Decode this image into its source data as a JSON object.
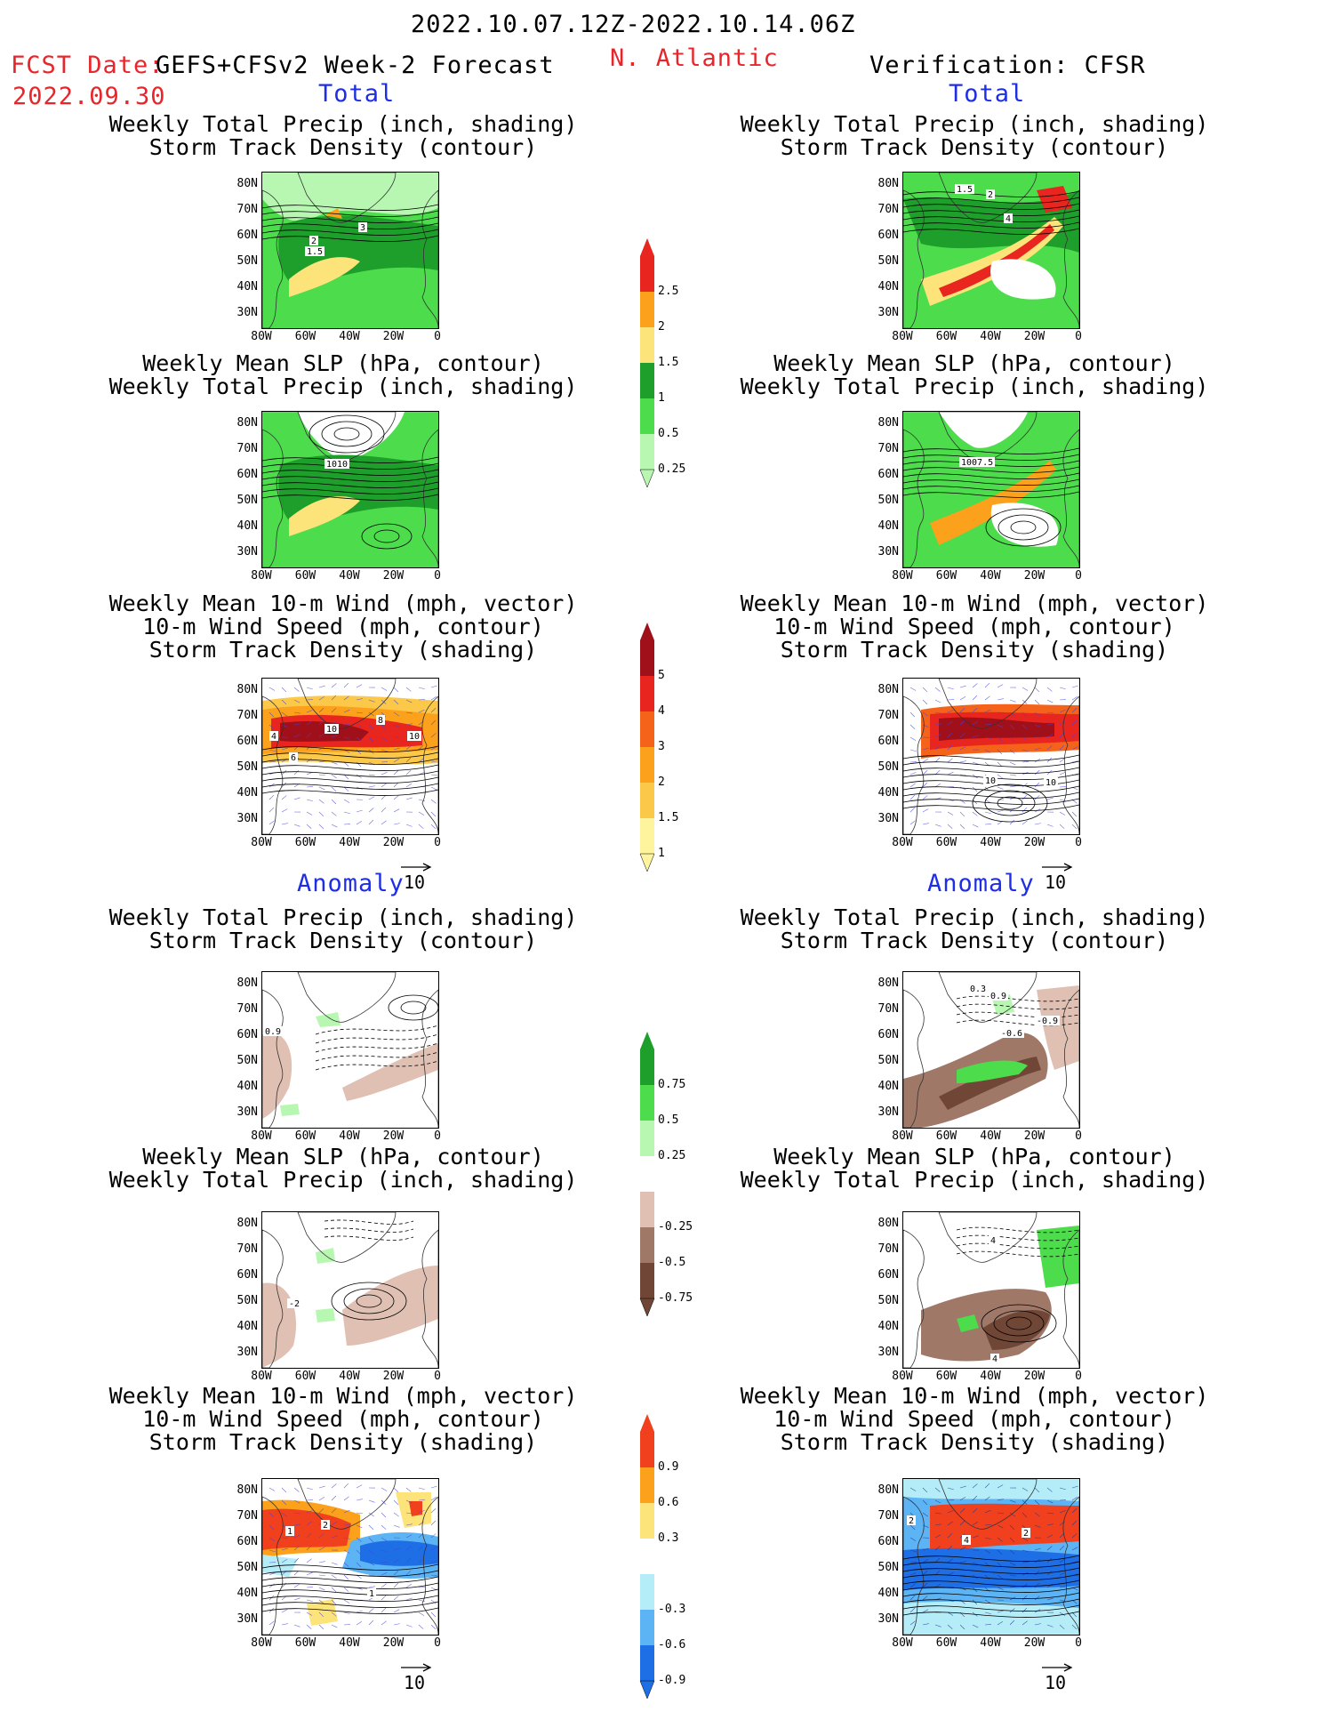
{
  "header": {
    "period": "2022.10.07.12Z-2022.10.14.06Z",
    "fcst_label": "FCST Date:",
    "fcst_model": "GEFS+CFSv2 Week-2 Forecast",
    "fcst_date": "2022.09.30",
    "region": "N. Atlantic",
    "verification": "Verification: CFSR"
  },
  "sections": {
    "total": "Total",
    "anomaly": "Anomaly"
  },
  "titles": {
    "precip_track": [
      "Weekly Total Precip (inch, shading)",
      "Storm Track Density (contour)"
    ],
    "slp_precip": [
      "Weekly Mean SLP (hPa, contour)",
      "Weekly Total Precip (inch, shading)"
    ],
    "wind_track": [
      "Weekly Mean 10-m Wind (mph, vector)",
      "10-m Wind Speed (mph, contour)",
      "Storm Track Density (shading)"
    ]
  },
  "axes": {
    "lat_ticks": [
      "80N",
      "70N",
      "60N",
      "50N",
      "40N",
      "30N"
    ],
    "lon_ticks": [
      "80W",
      "60W",
      "40W",
      "20W",
      "0"
    ]
  },
  "vector_ref": "10",
  "contour_labels": {
    "f_precip": [
      "3",
      "2",
      "1.5"
    ],
    "v_precip": [
      "1.5",
      "2",
      "4"
    ],
    "f_slp": [
      "1010"
    ],
    "v_slp": [
      "1007.5"
    ],
    "f_wind": [
      "10",
      "8",
      "4",
      "6",
      "10"
    ],
    "v_wind": [
      "10",
      "10"
    ],
    "fa_precip": [
      "0.9"
    ],
    "va_precip": [
      "0.3",
      "0.9",
      "-0.9",
      "-0.6"
    ],
    "fa_slp": [
      "-2"
    ],
    "va_slp": [
      "4",
      "4"
    ],
    "fa_wind": [
      "1",
      "2",
      "1"
    ],
    "va_wind": [
      "2",
      "4",
      "2"
    ]
  },
  "colorbars": {
    "precip_total": {
      "labels": [
        "2.5",
        "2",
        "1.5",
        "1",
        "0.5",
        "0.25"
      ],
      "colors": [
        "#e8251e",
        "#fba11b",
        "#fde47a",
        "#1e9e2a",
        "#4cdc4c",
        "#b8f7b2"
      ]
    },
    "track_total": {
      "labels": [
        "5",
        "4",
        "3",
        "2",
        "1.5",
        "1"
      ],
      "colors": [
        "#a0101a",
        "#e8251e",
        "#f5621a",
        "#fba11b",
        "#fcc84a",
        "#fef49e"
      ]
    },
    "precip_anom": {
      "labels": [
        "0.75",
        "0.5",
        "0.25",
        "-0.25",
        "-0.5",
        "-0.75"
      ],
      "colors": [
        "#1e9e2a",
        "#4cdc4c",
        "#b8f7b2",
        "#ffffff",
        "#e1c0b4",
        "#a07868",
        "#704636"
      ]
    },
    "track_anom": {
      "labels": [
        "0.9",
        "0.6",
        "0.3",
        "-0.3",
        "-0.6",
        "-0.9"
      ],
      "colors": [
        "#f0401e",
        "#fba11b",
        "#fde47a",
        "#ffffff",
        "#b4ecf8",
        "#5cb4f4",
        "#1e6ee6"
      ]
    }
  }
}
